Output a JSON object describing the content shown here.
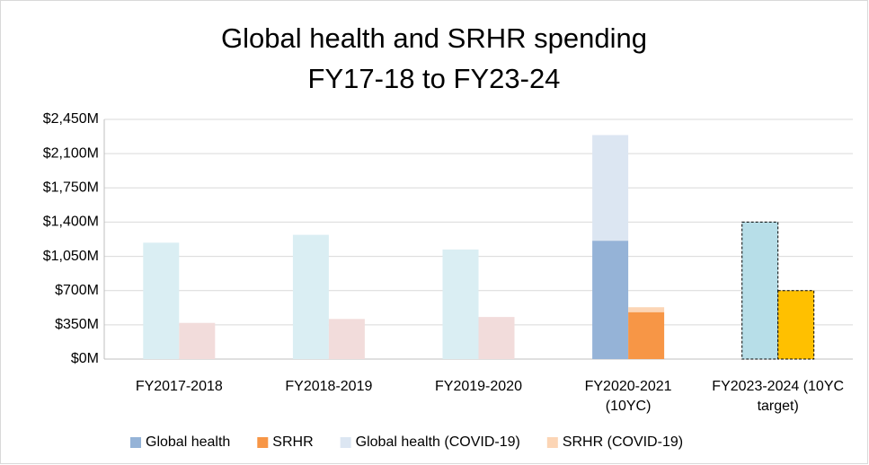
{
  "chart_data": {
    "type": "bar",
    "stacked": true,
    "title": [
      "Global health and SRHR spending",
      "FY17-18 to FY23-24"
    ],
    "categories": [
      "FY2017-2018",
      "FY2018-2019",
      "FY2019-2020",
      "FY2020-2021 (10YC)",
      "FY2023-2024 (10YC target)"
    ],
    "border_dashed": [
      false,
      false,
      false,
      false,
      true
    ],
    "series": [
      {
        "name": "Global health",
        "color": "#95b3d7",
        "group": 0,
        "values": [
          1190,
          1270,
          1120,
          1210,
          1400
        ],
        "colors": [
          "#daeef3",
          "#daeef3",
          "#daeef3",
          "#95b3d7",
          "#b7dee8"
        ]
      },
      {
        "name": "SRHR",
        "color": "#f79646",
        "group": 1,
        "values": [
          370,
          410,
          430,
          480,
          700
        ],
        "colors": [
          "#f2dcdb",
          "#f2dcdb",
          "#f2dcdb",
          "#f79646",
          "#ffc000"
        ]
      },
      {
        "name": "Global health (COVID-19)",
        "color": "#dce6f2",
        "group": 0,
        "values": [
          null,
          null,
          null,
          1080,
          null
        ]
      },
      {
        "name": "SRHR (COVID-19)",
        "color": "#fcd5b5",
        "group": 1,
        "values": [
          null,
          null,
          null,
          50,
          null
        ]
      }
    ],
    "ylim": [
      0,
      2450
    ],
    "yticks": [
      {
        "value": 0,
        "label": "$0M"
      },
      {
        "value": 350,
        "label": "$350M"
      },
      {
        "value": 700,
        "label": "$700M"
      },
      {
        "value": 1050,
        "label": "$1,050M"
      },
      {
        "value": 1400,
        "label": "$1,400M"
      },
      {
        "value": 1750,
        "label": "$1,750M"
      },
      {
        "value": 2100,
        "label": "$2,100M"
      },
      {
        "value": 2450,
        "label": "$2,450M"
      }
    ],
    "grid": true,
    "legend": "bottom"
  }
}
